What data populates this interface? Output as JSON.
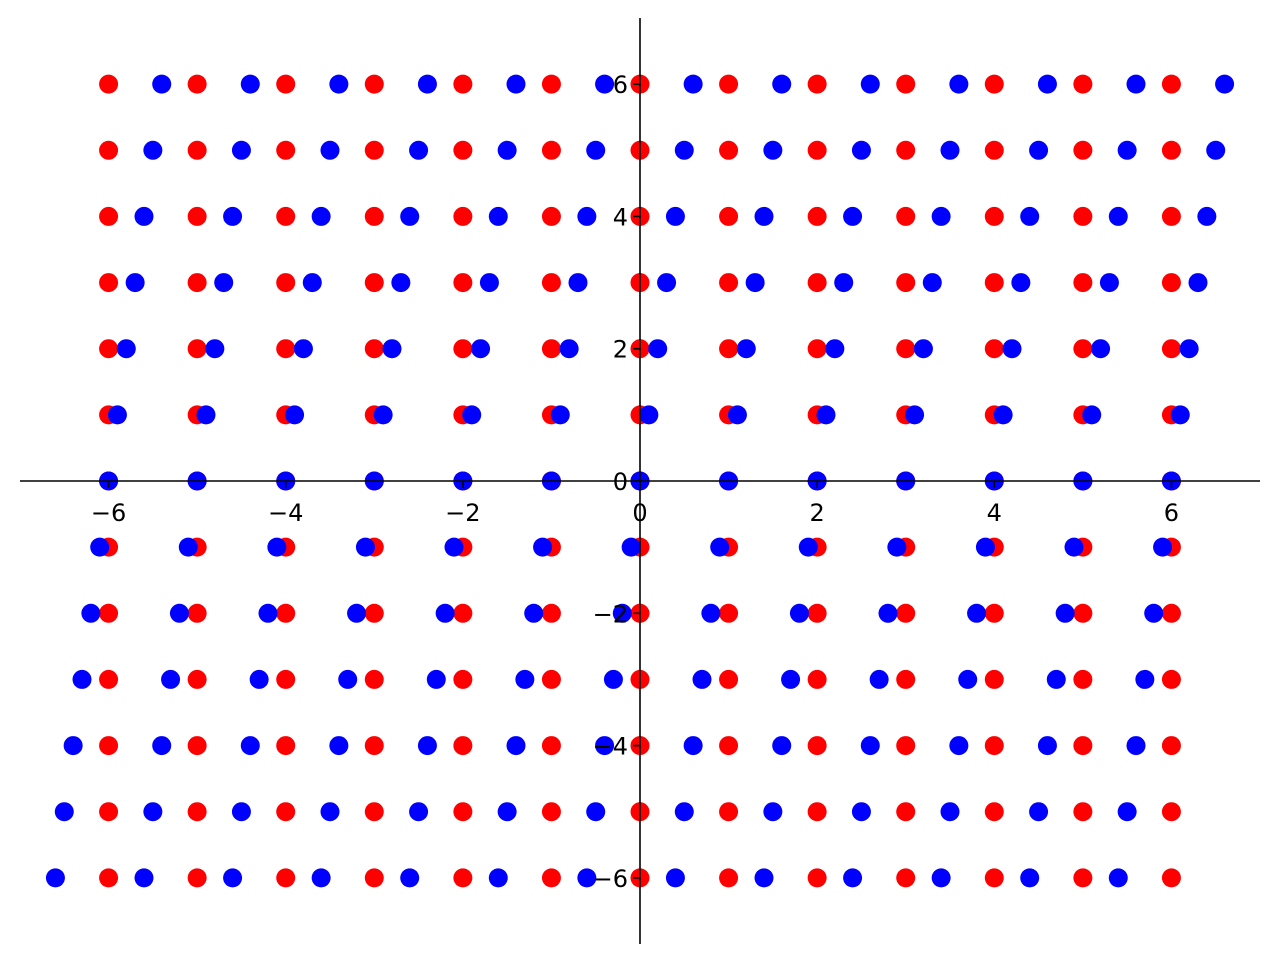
{
  "chart_data": {
    "type": "scatter",
    "title": "",
    "xlabel": "",
    "ylabel": "",
    "xlim": [
      -7,
      7
    ],
    "ylim": [
      -7,
      7
    ],
    "grid": false,
    "spines": "centered-at-origin",
    "xticks": [
      -6,
      -4,
      -2,
      0,
      2,
      4,
      6
    ],
    "yticks": [
      -6,
      -4,
      -2,
      0,
      2,
      4,
      6
    ],
    "xtick_labels": [
      "−6",
      "−4",
      "−2",
      "0",
      "2",
      "4",
      "6"
    ],
    "ytick_labels": [
      "−6",
      "−4",
      "−2",
      "0",
      "2",
      "4",
      "6"
    ],
    "series": [
      {
        "color": "#ff0000",
        "rows": [
          {
            "y": 6,
            "x": [
              -6,
              -5,
              -4,
              -3,
              -2,
              -1,
              0,
              1,
              2,
              3,
              4,
              5,
              6
            ]
          },
          {
            "y": 5,
            "x": [
              -6,
              -5,
              -4,
              -3,
              -2,
              -1,
              0,
              1,
              2,
              3,
              4,
              5,
              6
            ]
          },
          {
            "y": 4,
            "x": [
              -6,
              -5,
              -4,
              -3,
              -2,
              -1,
              0,
              1,
              2,
              3,
              4,
              5,
              6
            ]
          },
          {
            "y": 3,
            "x": [
              -6,
              -5,
              -4,
              -3,
              -2,
              -1,
              0,
              1,
              2,
              3,
              4,
              5,
              6
            ]
          },
          {
            "y": 2,
            "x": [
              -6,
              -5,
              -4,
              -3,
              -2,
              -1,
              0,
              1,
              2,
              3,
              4,
              5,
              6
            ]
          },
          {
            "y": 1,
            "x": [
              -6,
              -5,
              -4,
              -3,
              -2,
              -1,
              0,
              1,
              2,
              3,
              4,
              5,
              6
            ]
          },
          {
            "y": 0,
            "x": [
              -6,
              -5,
              -4,
              -3,
              -2,
              -1,
              0,
              1,
              2,
              3,
              4,
              5,
              6
            ]
          },
          {
            "y": -1,
            "x": [
              -6,
              -5,
              -4,
              -3,
              -2,
              -1,
              0,
              1,
              2,
              3,
              4,
              5,
              6
            ]
          },
          {
            "y": -2,
            "x": [
              -6,
              -5,
              -4,
              -3,
              -2,
              -1,
              0,
              1,
              2,
              3,
              4,
              5,
              6
            ]
          },
          {
            "y": -3,
            "x": [
              -6,
              -5,
              -4,
              -3,
              -2,
              -1,
              0,
              1,
              2,
              3,
              4,
              5,
              6
            ]
          },
          {
            "y": -4,
            "x": [
              -6,
              -5,
              -4,
              -3,
              -2,
              -1,
              0,
              1,
              2,
              3,
              4,
              5,
              6
            ]
          },
          {
            "y": -5,
            "x": [
              -6,
              -5,
              -4,
              -3,
              -2,
              -1,
              0,
              1,
              2,
              3,
              4,
              5,
              6
            ]
          },
          {
            "y": -6,
            "x": [
              -6,
              -5,
              -4,
              -3,
              -2,
              -1,
              0,
              1,
              2,
              3,
              4,
              5,
              6
            ]
          }
        ]
      },
      {
        "color": "#0000ff",
        "rows": [
          {
            "y": 6,
            "x": [
              -5.4,
              -4.4,
              -3.4,
              -2.4,
              -1.4,
              -0.4,
              0.6,
              1.6,
              2.6,
              3.6,
              4.6,
              5.6,
              6.6
            ]
          },
          {
            "y": 5,
            "x": [
              -5.5,
              -4.5,
              -3.5,
              -2.5,
              -1.5,
              -0.5,
              0.5,
              1.5,
              2.5,
              3.5,
              4.5,
              5.5,
              6.5
            ]
          },
          {
            "y": 4,
            "x": [
              -5.6,
              -4.6,
              -3.6,
              -2.6,
              -1.6,
              -0.6,
              0.4,
              1.4,
              2.4,
              3.4,
              4.4,
              5.4,
              6.4
            ]
          },
          {
            "y": 3,
            "x": [
              -5.7,
              -4.7,
              -3.7,
              -2.7,
              -1.7,
              -0.7,
              0.3,
              1.3,
              2.3,
              3.3,
              4.3,
              5.3,
              6.3
            ]
          },
          {
            "y": 2,
            "x": [
              -5.8,
              -4.8,
              -3.8,
              -2.8,
              -1.8,
              -0.8,
              0.2,
              1.2,
              2.2,
              3.2,
              4.2,
              5.2,
              6.2
            ]
          },
          {
            "y": 1,
            "x": [
              -5.9,
              -4.9,
              -3.9,
              -2.9,
              -1.9,
              -0.9,
              0.1,
              1.1,
              2.1,
              3.1,
              4.1,
              5.1,
              6.1
            ]
          },
          {
            "y": 0,
            "x": [
              -6,
              -5,
              -4,
              -3,
              -2,
              -1,
              0,
              1,
              2,
              3,
              4,
              5,
              6
            ]
          },
          {
            "y": -1,
            "x": [
              -6.1,
              -5.1,
              -4.1,
              -3.1,
              -2.1,
              -1.1,
              -0.1,
              0.9,
              1.9,
              2.9,
              3.9,
              4.9,
              5.9
            ]
          },
          {
            "y": -2,
            "x": [
              -6.2,
              -5.2,
              -4.2,
              -3.2,
              -2.2,
              -1.2,
              -0.2,
              0.8,
              1.8,
              2.8,
              3.8,
              4.8,
              5.8
            ]
          },
          {
            "y": -3,
            "x": [
              -6.3,
              -5.3,
              -4.3,
              -3.3,
              -2.3,
              -1.3,
              -0.3,
              0.7,
              1.7,
              2.7,
              3.7,
              4.7,
              5.7
            ]
          },
          {
            "y": -4,
            "x": [
              -6.4,
              -5.4,
              -4.4,
              -3.4,
              -2.4,
              -1.4,
              -0.4,
              0.6,
              1.6,
              2.6,
              3.6,
              4.6,
              5.6
            ]
          },
          {
            "y": -5,
            "x": [
              -6.5,
              -5.5,
              -4.5,
              -3.5,
              -2.5,
              -1.5,
              -0.5,
              0.5,
              1.5,
              2.5,
              3.5,
              4.5,
              5.5
            ]
          },
          {
            "y": -6,
            "x": [
              -6.6,
              -5.6,
              -4.6,
              -3.6,
              -2.6,
              -1.6,
              -0.6,
              0.4,
              1.4,
              2.4,
              3.4,
              4.4,
              5.4
            ]
          }
        ]
      }
    ]
  }
}
